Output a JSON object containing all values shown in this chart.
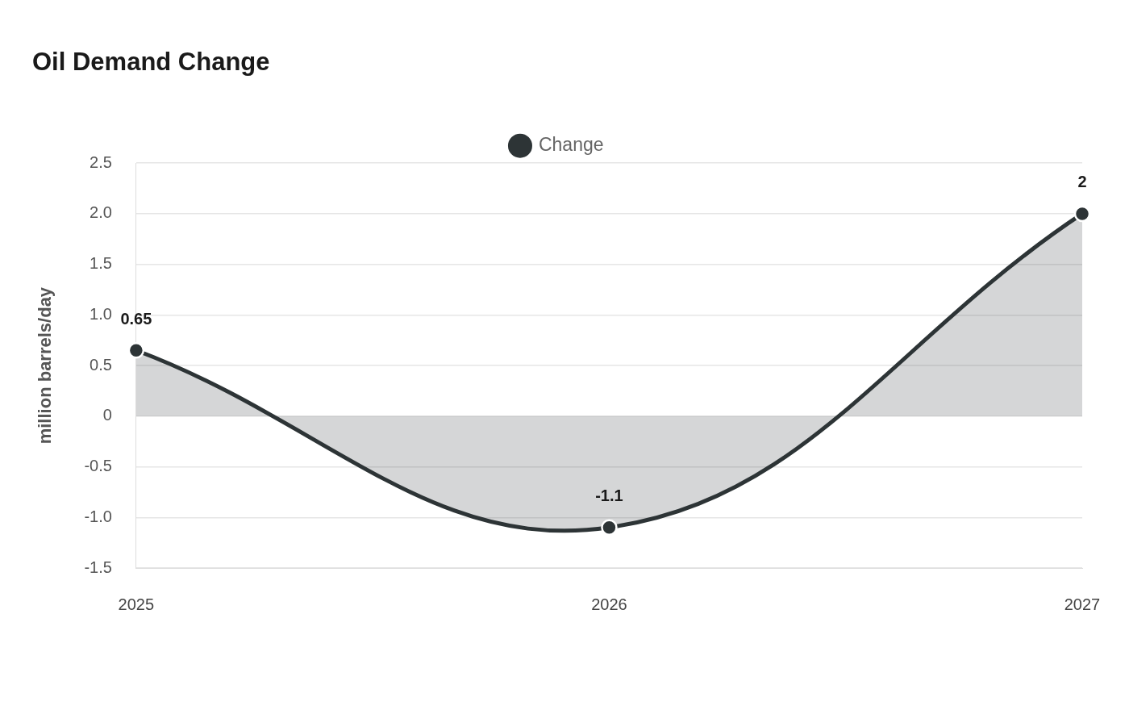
{
  "chart_data": {
    "type": "area",
    "title": "Oil Demand Change",
    "ylabel": "million barrels/day",
    "categories": [
      "2025",
      "2026",
      "2027"
    ],
    "series": [
      {
        "name": "Change",
        "color": "#2d3436",
        "values": [
          0.65,
          -1.1,
          2
        ]
      }
    ],
    "ylim": [
      -1.5,
      2.5
    ],
    "yticks": [
      {
        "value": -1.5,
        "label": "-1.5"
      },
      {
        "value": -1,
        "label": "-1.0"
      },
      {
        "value": -0.5,
        "label": "-0.5"
      },
      0,
      {
        "value": 0.5,
        "label": "0.5"
      },
      {
        "value": 1,
        "label": "1.0"
      },
      {
        "value": 1.5,
        "label": "1.5"
      },
      {
        "value": 2,
        "label": "2.0"
      },
      {
        "value": 2.5,
        "label": "2.5"
      }
    ],
    "grid": "y",
    "legend": "top",
    "marker": "circle",
    "data_labels": true
  }
}
